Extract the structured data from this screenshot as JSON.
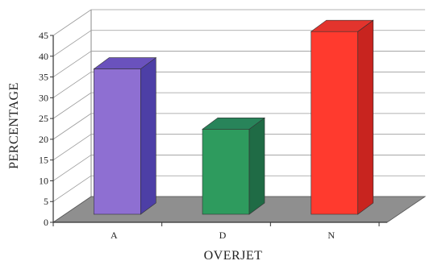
{
  "chart_data": {
    "type": "bar",
    "categories": [
      "A",
      "D",
      "N"
    ],
    "values": [
      35,
      20.5,
      44
    ],
    "xlabel": "OVERJET",
    "ylabel": "PERCENTAGE",
    "ylim": [
      0,
      45
    ],
    "yticks": [
      0,
      5,
      10,
      15,
      20,
      25,
      30,
      35,
      40,
      45
    ],
    "grid": true,
    "legend": "none",
    "colors": [
      {
        "front": "#8e6fd2",
        "side": "#4d3fa6",
        "top": "#6a52bd"
      },
      {
        "front": "#2e9b5e",
        "side": "#1f6b45",
        "top": "#28845a"
      },
      {
        "front": "#ff3a2e",
        "side": "#c8241f",
        "top": "#e3342d"
      }
    ],
    "floor_color": "#8f8f8f"
  }
}
